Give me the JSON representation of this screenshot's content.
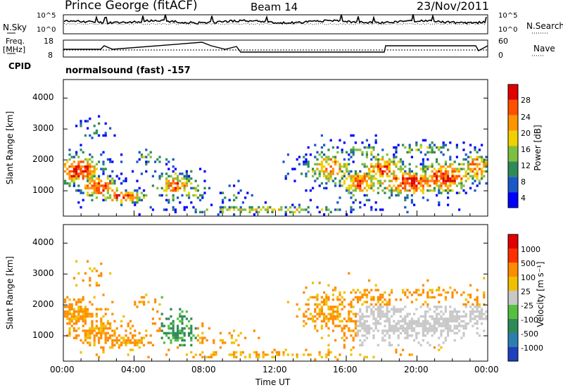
{
  "header": {
    "station": "Prince George (fitACF)",
    "beam": "Beam 14",
    "date": "23/Nov/2011"
  },
  "top_panels": {
    "nsky_label": "N.Sky",
    "nsearch_label": "N.Search",
    "freq_label_line1": "Freq.",
    "freq_label_line2": "[MHz]",
    "nave_label": "Nave",
    "cpid_label": "CPID",
    "cpid_value": "normalsound (fast) -157",
    "nsky_ticks": [
      "10^5",
      "10^0"
    ],
    "nsearch_ticks": [
      "10^5",
      "10^0"
    ],
    "freq_ticks": [
      "18",
      "8"
    ],
    "nave_ticks": [
      "60",
      "0"
    ]
  },
  "chart_data": [
    {
      "type": "heatmap",
      "name": "power-panel",
      "ylabel": "Slant Range [km]",
      "xlabel": "",
      "ylim": [
        180,
        4600
      ],
      "yticks": [
        1000,
        2000,
        3000,
        4000
      ],
      "colorbar_label": "Power [dB]",
      "colorbar_ticks": [
        "28",
        "24",
        "20",
        "16",
        "12",
        "8",
        "4"
      ],
      "colors": [
        "#0000ff",
        "#1a58c8",
        "#2e8b57",
        "#7fbf3f",
        "#f0d000",
        "#ff9400",
        "#ff5000",
        "#e00000"
      ]
    },
    {
      "type": "heatmap",
      "name": "velocity-panel",
      "ylabel": "Slant Range [km]",
      "xlabel": "Time UT",
      "ylim": [
        180,
        4600
      ],
      "yticks": [
        1000,
        2000,
        3000,
        4000
      ],
      "xticks": [
        "00:00",
        "04:00",
        "08:00",
        "12:00",
        "16:00",
        "20:00",
        "00:00"
      ],
      "colorbar_label": "Velocity [m s⁻¹]",
      "colorbar_ticks": [
        "1000",
        "500",
        "100",
        "25",
        "-25",
        "-100",
        "-500",
        "-1000"
      ],
      "colors": [
        "#1f3fbf",
        "#2a7fb0",
        "#2e8b57",
        "#55c040",
        "#c8c8c8",
        "#f0c000",
        "#ff8c00",
        "#ff3000",
        "#e00000"
      ]
    }
  ]
}
